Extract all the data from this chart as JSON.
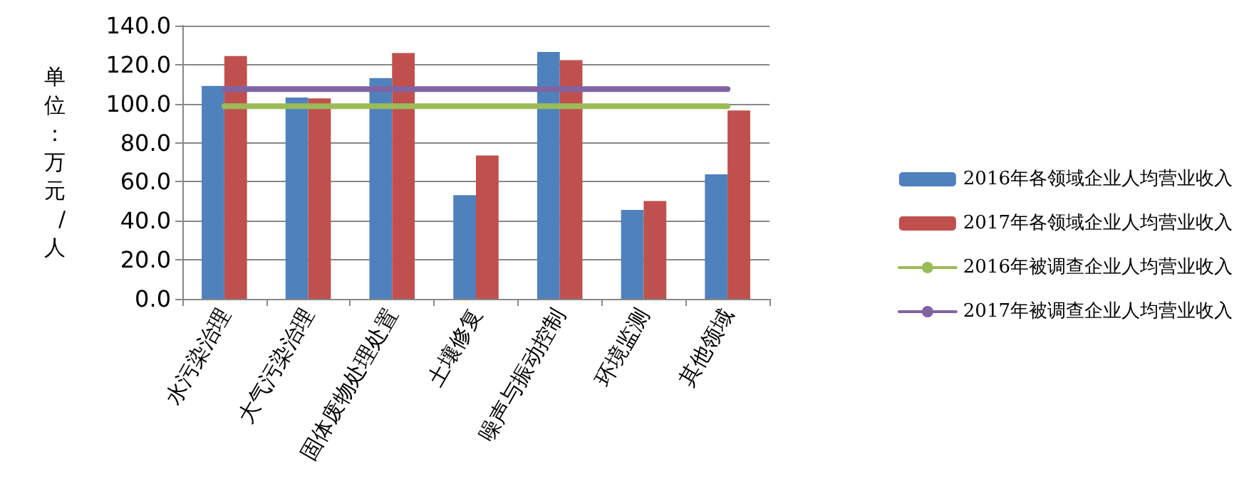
{
  "chart_data": {
    "type": "bar",
    "ylabel": "单位：万元/人",
    "categories": [
      "水污染治理",
      "大气污染治理",
      "固体废物处理处置",
      "土壤修复",
      "噪声与振动控制",
      "环境监测",
      "其他领域"
    ],
    "series": [
      {
        "name": "2016年各领域企业人均营业收入",
        "color": "#4f81bd",
        "values": [
          109.1,
          103.2,
          113.1,
          53.1,
          126.5,
          45.6,
          63.8
        ]
      },
      {
        "name": "2017年各领域企业人均营业收入",
        "color": "#c0504d",
        "values": [
          124.4,
          102.7,
          126.0,
          73.5,
          122.3,
          50.1,
          96.5
        ]
      },
      {
        "name": "2016年被调查企业人均营业收入",
        "color": "#9bbb59",
        "type": "line",
        "values": [
          98.7,
          98.7,
          98.7,
          98.7,
          98.7,
          98.7,
          98.7
        ]
      },
      {
        "name": "2017年被调查企业人均营业收入",
        "color": "#8064a2",
        "type": "line",
        "values": [
          107.5,
          107.5,
          107.5,
          107.5,
          107.5,
          107.5,
          107.5
        ]
      }
    ],
    "ylim": [
      0,
      140
    ],
    "yticks": [
      {
        "value": 0,
        "label": "0.0"
      },
      {
        "value": 20,
        "label": "20.0"
      },
      {
        "value": 40,
        "label": "40.0"
      },
      {
        "value": 60,
        "label": "60.0"
      },
      {
        "value": 80,
        "label": "80.0"
      },
      {
        "value": 100,
        "label": "100.0"
      },
      {
        "value": 120,
        "label": "120.0"
      },
      {
        "value": 140,
        "label": "140.0"
      }
    ],
    "grid": "y",
    "legend": "right",
    "marker": "none",
    "line_style": "solid"
  }
}
